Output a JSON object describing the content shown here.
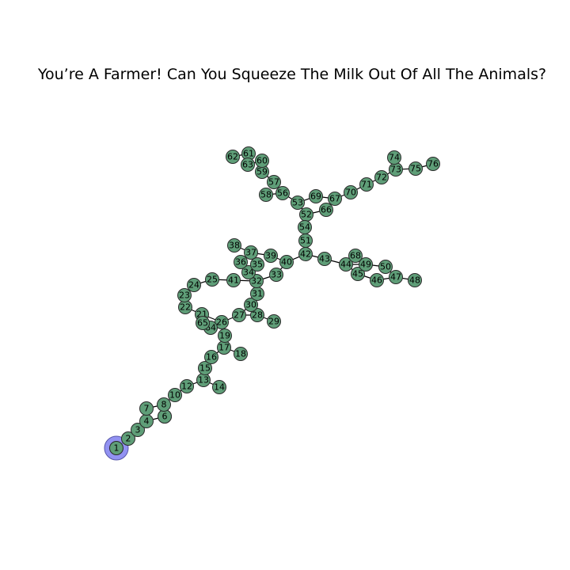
{
  "title": "You’re A Farmer! Can You Squeeze The Milk Out Of All The Animals?",
  "graph": {
    "start_node": "1",
    "colors": {
      "node": "#5f9e78",
      "start": "#7f7ff0",
      "edge": "#000000"
    },
    "nodes": [
      "1",
      "2",
      "3",
      "4",
      "5",
      "6",
      "7",
      "8",
      "10",
      "12",
      "13",
      "14",
      "15",
      "16",
      "17",
      "18",
      "19",
      "21",
      "22",
      "23",
      "24",
      "25",
      "26",
      "27",
      "28",
      "29",
      "30",
      "31",
      "32",
      "33",
      "34",
      "35",
      "36",
      "37",
      "38",
      "39",
      "40",
      "41",
      "42",
      "43",
      "44",
      "45",
      "46",
      "47",
      "48",
      "49",
      "50",
      "51",
      "52",
      "53",
      "54",
      "56",
      "57",
      "58",
      "59",
      "60",
      "61",
      "62",
      "63",
      "64",
      "65",
      "66",
      "67",
      "68",
      "69",
      "70",
      "71",
      "72",
      "73",
      "74",
      "75",
      "76"
    ],
    "edges": [
      [
        "1",
        "2"
      ],
      [
        "2",
        "3"
      ],
      [
        "3",
        "4"
      ],
      [
        "4",
        "7"
      ],
      [
        "4",
        "5"
      ],
      [
        "5",
        "8"
      ],
      [
        "7",
        "8"
      ],
      [
        "8",
        "10"
      ],
      [
        "10",
        "12"
      ],
      [
        "12",
        "13"
      ],
      [
        "13",
        "14"
      ],
      [
        "13",
        "15"
      ],
      [
        "15",
        "16"
      ],
      [
        "16",
        "17"
      ],
      [
        "17",
        "18"
      ],
      [
        "17",
        "19"
      ],
      [
        "19",
        "26"
      ],
      [
        "26",
        "64"
      ],
      [
        "64",
        "65"
      ],
      [
        "65",
        "21"
      ],
      [
        "21",
        "22"
      ],
      [
        "21",
        "26"
      ],
      [
        "22",
        "23"
      ],
      [
        "23",
        "24"
      ],
      [
        "24",
        "25"
      ],
      [
        "25",
        "41"
      ],
      [
        "41",
        "32"
      ],
      [
        "26",
        "27"
      ],
      [
        "27",
        "28"
      ],
      [
        "28",
        "29"
      ],
      [
        "27",
        "30"
      ],
      [
        "30",
        "31"
      ],
      [
        "31",
        "32"
      ],
      [
        "32",
        "33"
      ],
      [
        "32",
        "34"
      ],
      [
        "34",
        "35"
      ],
      [
        "34",
        "36"
      ],
      [
        "36",
        "37"
      ],
      [
        "35",
        "37"
      ],
      [
        "37",
        "38"
      ],
      [
        "37",
        "39"
      ],
      [
        "39",
        "40"
      ],
      [
        "33",
        "40"
      ],
      [
        "40",
        "42"
      ],
      [
        "42",
        "51"
      ],
      [
        "51",
        "54"
      ],
      [
        "54",
        "52"
      ],
      [
        "52",
        "66"
      ],
      [
        "52",
        "53"
      ],
      [
        "53",
        "56"
      ],
      [
        "56",
        "58"
      ],
      [
        "56",
        "57"
      ],
      [
        "57",
        "59"
      ],
      [
        "59",
        "60"
      ],
      [
        "60",
        "63"
      ],
      [
        "63",
        "61"
      ],
      [
        "61",
        "62"
      ],
      [
        "53",
        "69"
      ],
      [
        "69",
        "67"
      ],
      [
        "66",
        "67"
      ],
      [
        "67",
        "70"
      ],
      [
        "70",
        "71"
      ],
      [
        "71",
        "72"
      ],
      [
        "72",
        "73"
      ],
      [
        "73",
        "74"
      ],
      [
        "73",
        "75"
      ],
      [
        "75",
        "76"
      ],
      [
        "42",
        "43"
      ],
      [
        "43",
        "44"
      ],
      [
        "44",
        "68"
      ],
      [
        "44",
        "45"
      ],
      [
        "45",
        "46"
      ],
      [
        "44",
        "49"
      ],
      [
        "49",
        "50"
      ],
      [
        "50",
        "47"
      ],
      [
        "46",
        "47"
      ],
      [
        "47",
        "48"
      ],
      [
        "68",
        "49"
      ]
    ]
  }
}
